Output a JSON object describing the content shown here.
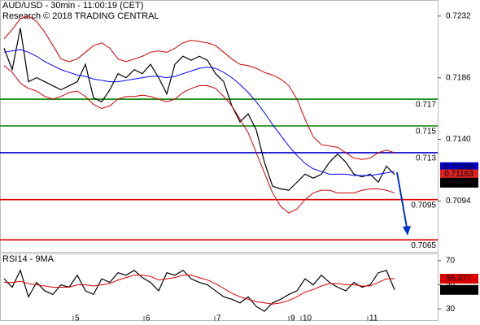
{
  "chart_data": [
    {
      "type": "line",
      "title": "AUD/USD - 30min - 11:00:19 (CET)",
      "subtitle": "Research © 2018 TRADING CENTRAL",
      "xlim": [
        -0.5,
        53.3
      ],
      "ylim": [
        0.7056,
        0.7244
      ],
      "yticks": [
        0.7232,
        0.7186,
        {
          "value": 0.714,
          "label": "0.7140"
        },
        0.7094
      ],
      "series": [
        {
          "name": "close",
          "color": "#000000",
          "values": [
            0.7208,
            0.7192,
            0.7223,
            0.7183,
            0.7186,
            0.7183,
            0.718,
            0.7177,
            0.718,
            0.7183,
            0.7196,
            0.7171,
            0.7168,
            0.7177,
            0.7189,
            0.7186,
            0.7192,
            0.7189,
            0.7196,
            0.7186,
            0.7174,
            0.7196,
            0.7202,
            0.7199,
            0.7202,
            0.7199,
            0.7189,
            0.7183,
            0.7165,
            0.7153,
            0.7159,
            0.7147,
            0.7123,
            0.7105,
            0.7103,
            0.7102,
            0.7108,
            0.7114,
            0.7111,
            0.7114,
            0.7123,
            0.7129,
            0.7123,
            0.7114,
            0.7112,
            0.7114,
            0.7108,
            0.712,
            0.71137
          ]
        },
        {
          "name": "ma",
          "color": "#0000ff",
          "values": [
            0.7205,
            0.7206,
            0.7207,
            0.7205,
            0.7202,
            0.7198,
            0.7195,
            0.7192,
            0.719,
            0.7188,
            0.7187,
            0.7185,
            0.7184,
            0.7183,
            0.7183,
            0.7184,
            0.7185,
            0.7186,
            0.7187,
            0.7187,
            0.7186,
            0.7187,
            0.7189,
            0.7191,
            0.7193,
            0.7194,
            0.7193,
            0.719,
            0.7186,
            0.7181,
            0.7175,
            0.7168,
            0.716,
            0.7151,
            0.7143,
            0.7135,
            0.7128,
            0.7122,
            0.7118,
            0.7116,
            0.7114,
            0.7114,
            0.7114,
            0.7113,
            0.7113,
            0.7113,
            0.7114,
            0.7115,
            0.7116
          ]
        },
        {
          "name": "upper",
          "color": "#cc0000",
          "values": [
            0.7215,
            0.7222,
            0.723,
            0.7232,
            0.7228,
            0.722,
            0.721,
            0.72,
            0.7198,
            0.72,
            0.7205,
            0.721,
            0.7212,
            0.7208,
            0.72,
            0.7198,
            0.72,
            0.7202,
            0.7205,
            0.7206,
            0.7205,
            0.7208,
            0.7212,
            0.7214,
            0.7213,
            0.7212,
            0.721,
            0.7205,
            0.72,
            0.7196,
            0.7195,
            0.7193,
            0.719,
            0.7188,
            0.7185,
            0.718,
            0.717,
            0.7155,
            0.7142,
            0.7136,
            0.7135,
            0.7134,
            0.713,
            0.7126,
            0.7125,
            0.7126,
            0.713,
            0.7132,
            0.713
          ]
        },
        {
          "name": "lower",
          "color": "#cc0000",
          "values": [
            0.7195,
            0.719,
            0.7182,
            0.7178,
            0.7176,
            0.7172,
            0.717,
            0.7172,
            0.7175,
            0.7176,
            0.7172,
            0.7166,
            0.7163,
            0.7165,
            0.717,
            0.7172,
            0.7172,
            0.7173,
            0.7172,
            0.717,
            0.7168,
            0.717,
            0.7175,
            0.7178,
            0.718,
            0.718,
            0.7178,
            0.7172,
            0.7165,
            0.7155,
            0.7145,
            0.713,
            0.7115,
            0.71,
            0.709,
            0.7085,
            0.7088,
            0.7095,
            0.71,
            0.7102,
            0.7102,
            0.71,
            0.71,
            0.71,
            0.7102,
            0.7103,
            0.7103,
            0.7102,
            0.71
          ]
        }
      ],
      "levels": [
        {
          "value": 0.717,
          "color": "#008000"
        },
        {
          "value": 0.715,
          "color": "#008000"
        },
        {
          "value": 0.713,
          "color": "#0000cc"
        },
        {
          "value": 0.7095,
          "color": "#dd0000"
        },
        {
          "value": 0.7065,
          "color": "#dd0000"
        }
      ],
      "markers": [
        {
          "value": 0.71168,
          "color": "#0000cc"
        },
        {
          "value": 0.71163,
          "color": "#dd2222"
        }
      ]
    },
    {
      "type": "line",
      "title": "RSI14 - 9MA",
      "xlim": [
        -0.5,
        53.3
      ],
      "ylim": [
        20,
        76
      ],
      "yticks": [
        70,
        50,
        30
      ],
      "xticks": [
        {
          "value": 8.5,
          "label": "5"
        },
        {
          "value": 17.2,
          "label": "6"
        },
        {
          "value": 25.9,
          "label": "7"
        },
        {
          "value": 35,
          "label": "9"
        },
        {
          "value": 36.5,
          "label": "10"
        },
        {
          "value": 44.7,
          "label": "11"
        }
      ],
      "series": [
        {
          "name": "rsi",
          "color": "#000000",
          "values": [
            55,
            48,
            62,
            40,
            52,
            45,
            42,
            50,
            48,
            58,
            45,
            42,
            55,
            52,
            60,
            58,
            62,
            56,
            52,
            45,
            60,
            58,
            62,
            55,
            52,
            50,
            45,
            40,
            38,
            35,
            40,
            32,
            28,
            35,
            38,
            42,
            45,
            55,
            50,
            58,
            52,
            48,
            45,
            52,
            48,
            50,
            60,
            62,
            45.784
          ]
        },
        {
          "name": "rsi-ma",
          "color": "#dd0000",
          "values": [
            52,
            52,
            53,
            51,
            50,
            49,
            48,
            48,
            48,
            50,
            50,
            49,
            50,
            51,
            54,
            56,
            58,
            58,
            57,
            54,
            55,
            56,
            58,
            58,
            56,
            54,
            51,
            47,
            43,
            40,
            38,
            36,
            35,
            34,
            35,
            37,
            40,
            44,
            46,
            49,
            51,
            51,
            50,
            50,
            49,
            49,
            52,
            55,
            55.077
          ]
        }
      ]
    }
  ]
}
